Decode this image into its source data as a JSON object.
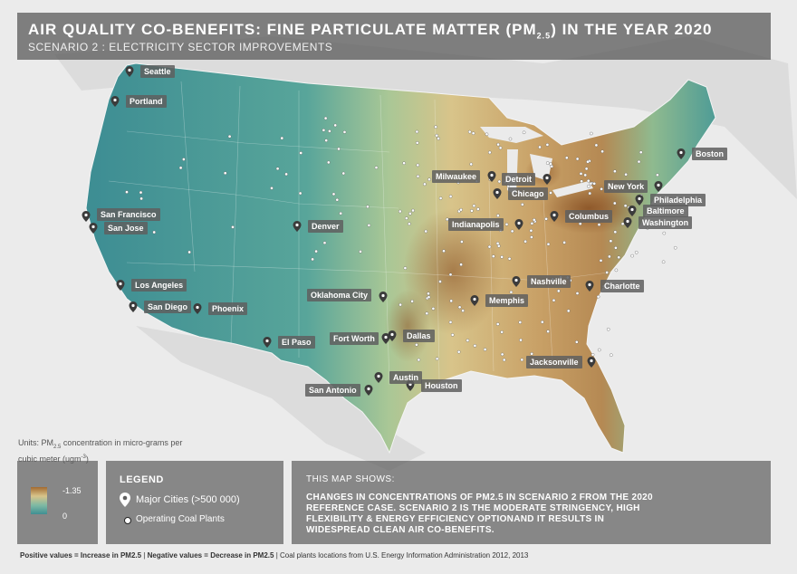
{
  "header": {
    "title_main": "AIR QUALITY CO-BENEFITS: FINE PARTICULATE MATTER (PM",
    "title_sub": "2.5",
    "title_end": ") IN THE YEAR 2020",
    "subtitle": "SCENARIO 2 : ELECTRICITY SECTOR IMPROVEMENTS"
  },
  "cities": [
    {
      "name": "Seattle"
    },
    {
      "name": "Portland"
    },
    {
      "name": "San Francisco"
    },
    {
      "name": "San Jose"
    },
    {
      "name": "Los Angeles"
    },
    {
      "name": "San Diego"
    },
    {
      "name": "Phoenix"
    },
    {
      "name": "El Paso"
    },
    {
      "name": "Denver"
    },
    {
      "name": "Oklahoma City"
    },
    {
      "name": "Fort Worth"
    },
    {
      "name": "Dallas"
    },
    {
      "name": "Austin"
    },
    {
      "name": "San Antonio"
    },
    {
      "name": "Houston"
    },
    {
      "name": "Memphis"
    },
    {
      "name": "Nashville"
    },
    {
      "name": "Charlotte"
    },
    {
      "name": "Jacksonville"
    },
    {
      "name": "Indianapolis"
    },
    {
      "name": "Columbus"
    },
    {
      "name": "Milwaukee"
    },
    {
      "name": "Chicago"
    },
    {
      "name": "Detroit"
    },
    {
      "name": "Baltimore"
    },
    {
      "name": "Washington"
    },
    {
      "name": "Philadelphia"
    },
    {
      "name": "New York"
    },
    {
      "name": "Boston"
    }
  ],
  "units": {
    "text_a": "Units: PM",
    "text_sub": "2.5",
    "text_b": " concentration in micro-grams per cubic meter (ugm",
    "text_sup": "-3",
    "text_c": ")"
  },
  "scale": {
    "max_label": "-1.35",
    "min_label": "0"
  },
  "legend": {
    "title": "LEGEND",
    "city_label": "Major Cities (>500 000)",
    "coal_label": "Operating Coal Plants"
  },
  "info": {
    "title": "THIS MAP SHOWS:",
    "text": "CHANGES IN CONCENTRATIONS OF PM2.5 IN SCENARIO 2 FROM THE 2020 REFERENCE CASE. SCENARIO 2 IS THE MODERATE STRINGENCY, HIGH FLEXIBILITY & ENERGY EFFICIENCY OPTIONAND IT RESULTS IN WIDESPREAD CLEAN AIR CO-BENEFITS."
  },
  "footer": {
    "positive": "Positive values = Increase in PM2.5",
    "sep1": " | ",
    "negative": "Negative values = Decrease in PM2.5",
    "sep2": " | ",
    "source": "Coal plants locations from U.S. Energy Information Administration 2012, 2013"
  },
  "colors": {
    "background": "#ebebeb",
    "low": "#3f8f93",
    "mid": "#d8c48a",
    "high": "#8a5326",
    "panel": "#5f5f5f"
  }
}
